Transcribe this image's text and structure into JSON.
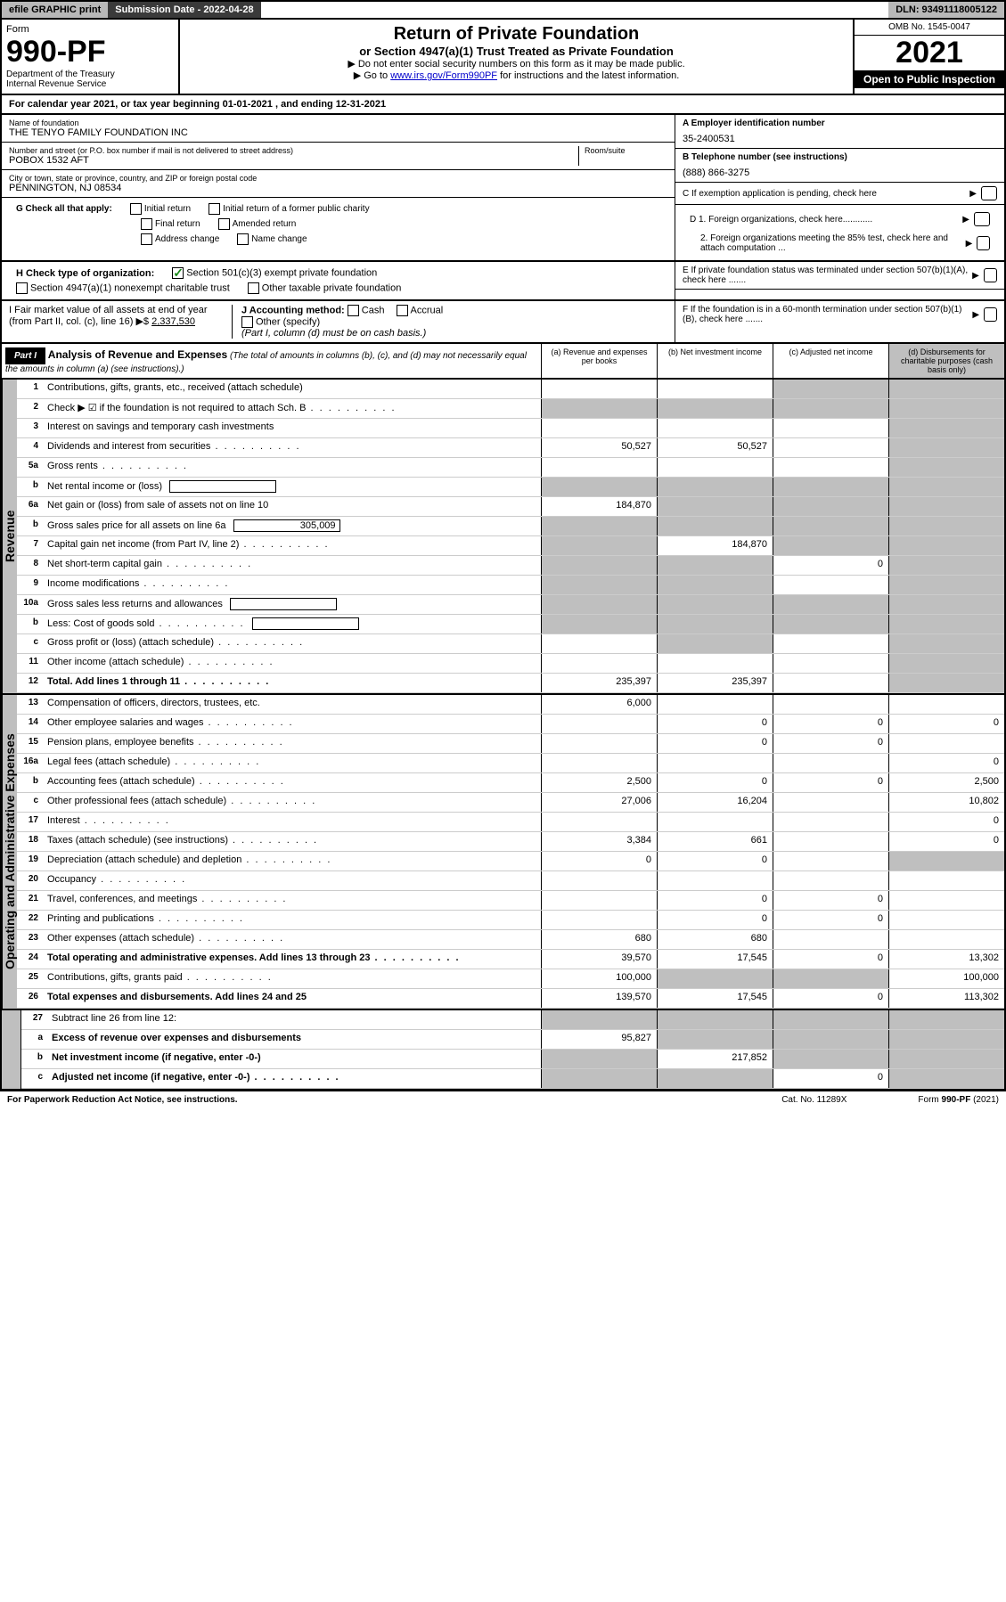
{
  "topbar": {
    "efile": "efile GRAPHIC print",
    "submission": "Submission Date - 2022-04-28",
    "dln": "DLN: 93491118005122"
  },
  "header": {
    "form_label": "Form",
    "form_num": "990-PF",
    "dept": "Department of the Treasury",
    "irs": "Internal Revenue Service",
    "title": "Return of Private Foundation",
    "subtitle": "or Section 4947(a)(1) Trust Treated as Private Foundation",
    "inst1": "▶ Do not enter social security numbers on this form as it may be made public.",
    "inst2_pre": "▶ Go to ",
    "inst2_link": "www.irs.gov/Form990PF",
    "inst2_post": " for instructions and the latest information.",
    "omb": "OMB No. 1545-0047",
    "year": "2021",
    "public": "Open to Public Inspection"
  },
  "calyear": "For calendar year 2021, or tax year beginning 01-01-2021                                                 , and ending 12-31-2021",
  "foundation": {
    "name_label": "Name of foundation",
    "name": "THE TENYO FAMILY FOUNDATION INC",
    "addr_label": "Number and street (or P.O. box number if mail is not delivered to street address)",
    "room_label": "Room/suite",
    "addr": "POBOX 1532 AFT",
    "city_label": "City or town, state or province, country, and ZIP or foreign postal code",
    "city": "PENNINGTON, NJ  08534",
    "ein_label": "A Employer identification number",
    "ein": "35-2400531",
    "tel_label": "B Telephone number (see instructions)",
    "tel": "(888) 866-3275",
    "c_label": "C If exemption application is pending, check here"
  },
  "checks": {
    "g_label": "G Check all that apply:",
    "initial": "Initial return",
    "initial_former": "Initial return of a former public charity",
    "final": "Final return",
    "amended": "Amended return",
    "addr_change": "Address change",
    "name_change": "Name change",
    "h_label": "H Check type of organization:",
    "h_501c3": "Section 501(c)(3) exempt private foundation",
    "h_4947": "Section 4947(a)(1) nonexempt charitable trust",
    "h_other": "Other taxable private foundation",
    "i_label": "I Fair market value of all assets at end of year (from Part II, col. (c), line 16)",
    "i_arrow": "▶$",
    "i_val": "2,337,530",
    "j_label": "J Accounting method:",
    "j_cash": "Cash",
    "j_accrual": "Accrual",
    "j_other": "Other (specify)",
    "j_note": "(Part I, column (d) must be on cash basis.)",
    "d1": "D 1. Foreign organizations, check here............",
    "d2": "2. Foreign organizations meeting the 85% test, check here and attach computation ...",
    "e": "E  If private foundation status was terminated under section 507(b)(1)(A), check here .......",
    "f": "F  If the foundation is in a 60-month termination under section 507(b)(1)(B), check here .......",
    "arrow": "▶"
  },
  "part1": {
    "label": "Part I",
    "title": "Analysis of Revenue and Expenses",
    "subtitle": "(The total of amounts in columns (b), (c), and (d) may not necessarily equal the amounts in column (a) (see instructions).)",
    "col_a": "(a)   Revenue and expenses per books",
    "col_b": "(b)   Net investment income",
    "col_c": "(c)   Adjusted net income",
    "col_d": "(d)   Disbursements for charitable purposes (cash basis only)"
  },
  "sections": {
    "revenue": "Revenue",
    "expenses": "Operating and Administrative Expenses"
  },
  "lines": [
    {
      "n": "1",
      "d": "Contributions, gifts, grants, etc., received (attach schedule)",
      "a": "",
      "b": "",
      "c": "shade",
      "dd": "shade"
    },
    {
      "n": "2",
      "d": "Check ▶ ☑ if the foundation is not required to attach Sch. B",
      "dots": true,
      "a": "shade",
      "b": "shade",
      "c": "shade",
      "dd": "shade"
    },
    {
      "n": "3",
      "d": "Interest on savings and temporary cash investments",
      "a": "",
      "b": "",
      "c": "",
      "dd": "shade"
    },
    {
      "n": "4",
      "d": "Dividends and interest from securities",
      "dots": true,
      "a": "50,527",
      "b": "50,527",
      "c": "",
      "dd": "shade"
    },
    {
      "n": "5a",
      "d": "Gross rents",
      "dots": true,
      "a": "",
      "b": "",
      "c": "",
      "dd": "shade"
    },
    {
      "n": "b",
      "d": "Net rental income or (loss)",
      "box": "",
      "a": "shade",
      "b": "shade",
      "c": "shade",
      "dd": "shade"
    },
    {
      "n": "6a",
      "d": "Net gain or (loss) from sale of assets not on line 10",
      "a": "184,870",
      "b": "shade",
      "c": "shade",
      "dd": "shade"
    },
    {
      "n": "b",
      "d": "Gross sales price for all assets on line 6a",
      "box": "305,009",
      "a": "shade",
      "b": "shade",
      "c": "shade",
      "dd": "shade"
    },
    {
      "n": "7",
      "d": "Capital gain net income (from Part IV, line 2)",
      "dots": true,
      "a": "shade",
      "b": "184,870",
      "c": "shade",
      "dd": "shade"
    },
    {
      "n": "8",
      "d": "Net short-term capital gain",
      "dots": true,
      "a": "shade",
      "b": "shade",
      "c": "0",
      "dd": "shade"
    },
    {
      "n": "9",
      "d": "Income modifications",
      "dots": true,
      "a": "shade",
      "b": "shade",
      "c": "",
      "dd": "shade"
    },
    {
      "n": "10a",
      "d": "Gross sales less returns and allowances",
      "box": "",
      "a": "shade",
      "b": "shade",
      "c": "shade",
      "dd": "shade"
    },
    {
      "n": "b",
      "d": "Less: Cost of goods sold",
      "dots": true,
      "box": "",
      "a": "shade",
      "b": "shade",
      "c": "shade",
      "dd": "shade"
    },
    {
      "n": "c",
      "d": "Gross profit or (loss) (attach schedule)",
      "dots": true,
      "a": "",
      "b": "shade",
      "c": "",
      "dd": "shade"
    },
    {
      "n": "11",
      "d": "Other income (attach schedule)",
      "dots": true,
      "a": "",
      "b": "",
      "c": "",
      "dd": "shade"
    },
    {
      "n": "12",
      "d": "Total. Add lines 1 through 11",
      "bold": true,
      "dots": true,
      "a": "235,397",
      "b": "235,397",
      "c": "",
      "dd": "shade"
    }
  ],
  "exp_lines": [
    {
      "n": "13",
      "d": "Compensation of officers, directors, trustees, etc.",
      "a": "6,000",
      "b": "",
      "c": "",
      "dd": ""
    },
    {
      "n": "14",
      "d": "Other employee salaries and wages",
      "dots": true,
      "a": "",
      "b": "0",
      "c": "0",
      "dd": "0"
    },
    {
      "n": "15",
      "d": "Pension plans, employee benefits",
      "dots": true,
      "a": "",
      "b": "0",
      "c": "0",
      "dd": ""
    },
    {
      "n": "16a",
      "d": "Legal fees (attach schedule)",
      "dots": true,
      "a": "",
      "b": "",
      "c": "",
      "dd": "0"
    },
    {
      "n": "b",
      "d": "Accounting fees (attach schedule)",
      "dots": true,
      "a": "2,500",
      "b": "0",
      "c": "0",
      "dd": "2,500"
    },
    {
      "n": "c",
      "d": "Other professional fees (attach schedule)",
      "dots": true,
      "a": "27,006",
      "b": "16,204",
      "c": "",
      "dd": "10,802"
    },
    {
      "n": "17",
      "d": "Interest",
      "dots": true,
      "a": "",
      "b": "",
      "c": "",
      "dd": "0"
    },
    {
      "n": "18",
      "d": "Taxes (attach schedule) (see instructions)",
      "dots": true,
      "a": "3,384",
      "b": "661",
      "c": "",
      "dd": "0"
    },
    {
      "n": "19",
      "d": "Depreciation (attach schedule) and depletion",
      "dots": true,
      "a": "0",
      "b": "0",
      "c": "",
      "dd": "shade"
    },
    {
      "n": "20",
      "d": "Occupancy",
      "dots": true,
      "a": "",
      "b": "",
      "c": "",
      "dd": ""
    },
    {
      "n": "21",
      "d": "Travel, conferences, and meetings",
      "dots": true,
      "a": "",
      "b": "0",
      "c": "0",
      "dd": ""
    },
    {
      "n": "22",
      "d": "Printing and publications",
      "dots": true,
      "a": "",
      "b": "0",
      "c": "0",
      "dd": ""
    },
    {
      "n": "23",
      "d": "Other expenses (attach schedule)",
      "dots": true,
      "a": "680",
      "b": "680",
      "c": "",
      "dd": ""
    },
    {
      "n": "24",
      "d": "Total operating and administrative expenses. Add lines 13 through 23",
      "bold": true,
      "dots": true,
      "a": "39,570",
      "b": "17,545",
      "c": "0",
      "dd": "13,302"
    },
    {
      "n": "25",
      "d": "Contributions, gifts, grants paid",
      "dots": true,
      "a": "100,000",
      "b": "shade",
      "c": "shade",
      "dd": "100,000"
    },
    {
      "n": "26",
      "d": "Total expenses and disbursements. Add lines 24 and 25",
      "bold": true,
      "a": "139,570",
      "b": "17,545",
      "c": "0",
      "dd": "113,302"
    }
  ],
  "bottom_lines": [
    {
      "n": "27",
      "d": "Subtract line 26 from line 12:",
      "a": "shade",
      "b": "shade",
      "c": "shade",
      "dd": "shade"
    },
    {
      "n": "a",
      "d": "Excess of revenue over expenses and disbursements",
      "bold": true,
      "a": "95,827",
      "b": "shade",
      "c": "shade",
      "dd": "shade"
    },
    {
      "n": "b",
      "d": "Net investment income (if negative, enter -0-)",
      "bold": true,
      "a": "shade",
      "b": "217,852",
      "c": "shade",
      "dd": "shade"
    },
    {
      "n": "c",
      "d": "Adjusted net income (if negative, enter -0-)",
      "bold": true,
      "dots": true,
      "a": "shade",
      "b": "shade",
      "c": "0",
      "dd": "shade"
    }
  ],
  "footer": {
    "left": "For Paperwork Reduction Act Notice, see instructions.",
    "mid": "Cat. No. 11289X",
    "right": "Form 990-PF (2021)"
  }
}
